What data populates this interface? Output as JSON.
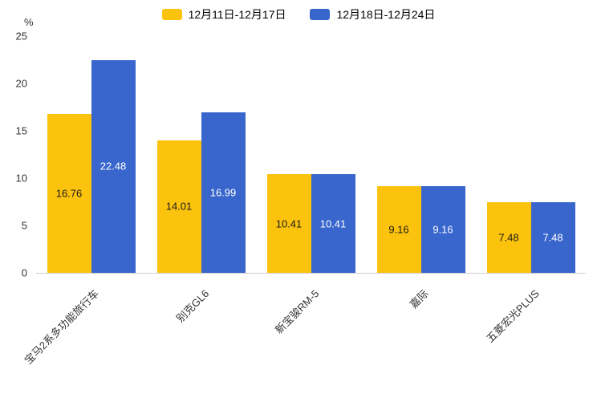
{
  "chart_data": {
    "type": "bar",
    "title": "",
    "xlabel": "",
    "ylabel": "%",
    "ylim": [
      0,
      25
    ],
    "yticks": [
      0,
      5,
      10,
      15,
      20,
      25
    ],
    "grid": false,
    "legend_position": "top",
    "axis_text_color": "#333333",
    "value_label_decimals": 2,
    "categories": [
      "宝马2系多功能旅行车",
      "别克GL6",
      "新宝骏RM-5",
      "嘉际",
      "五菱宏光PLUS"
    ],
    "series": [
      {
        "name": "12月11日-12月17日",
        "color": "#FCC30E",
        "label_color": "#1a1a1a",
        "values": [
          16.76,
          14.01,
          10.41,
          9.16,
          7.48
        ]
      },
      {
        "name": "12月18日-12月24日",
        "color": "#3966CC",
        "label_color": "#ffffff",
        "values": [
          22.48,
          16.99,
          10.41,
          9.16,
          7.48
        ]
      }
    ]
  }
}
